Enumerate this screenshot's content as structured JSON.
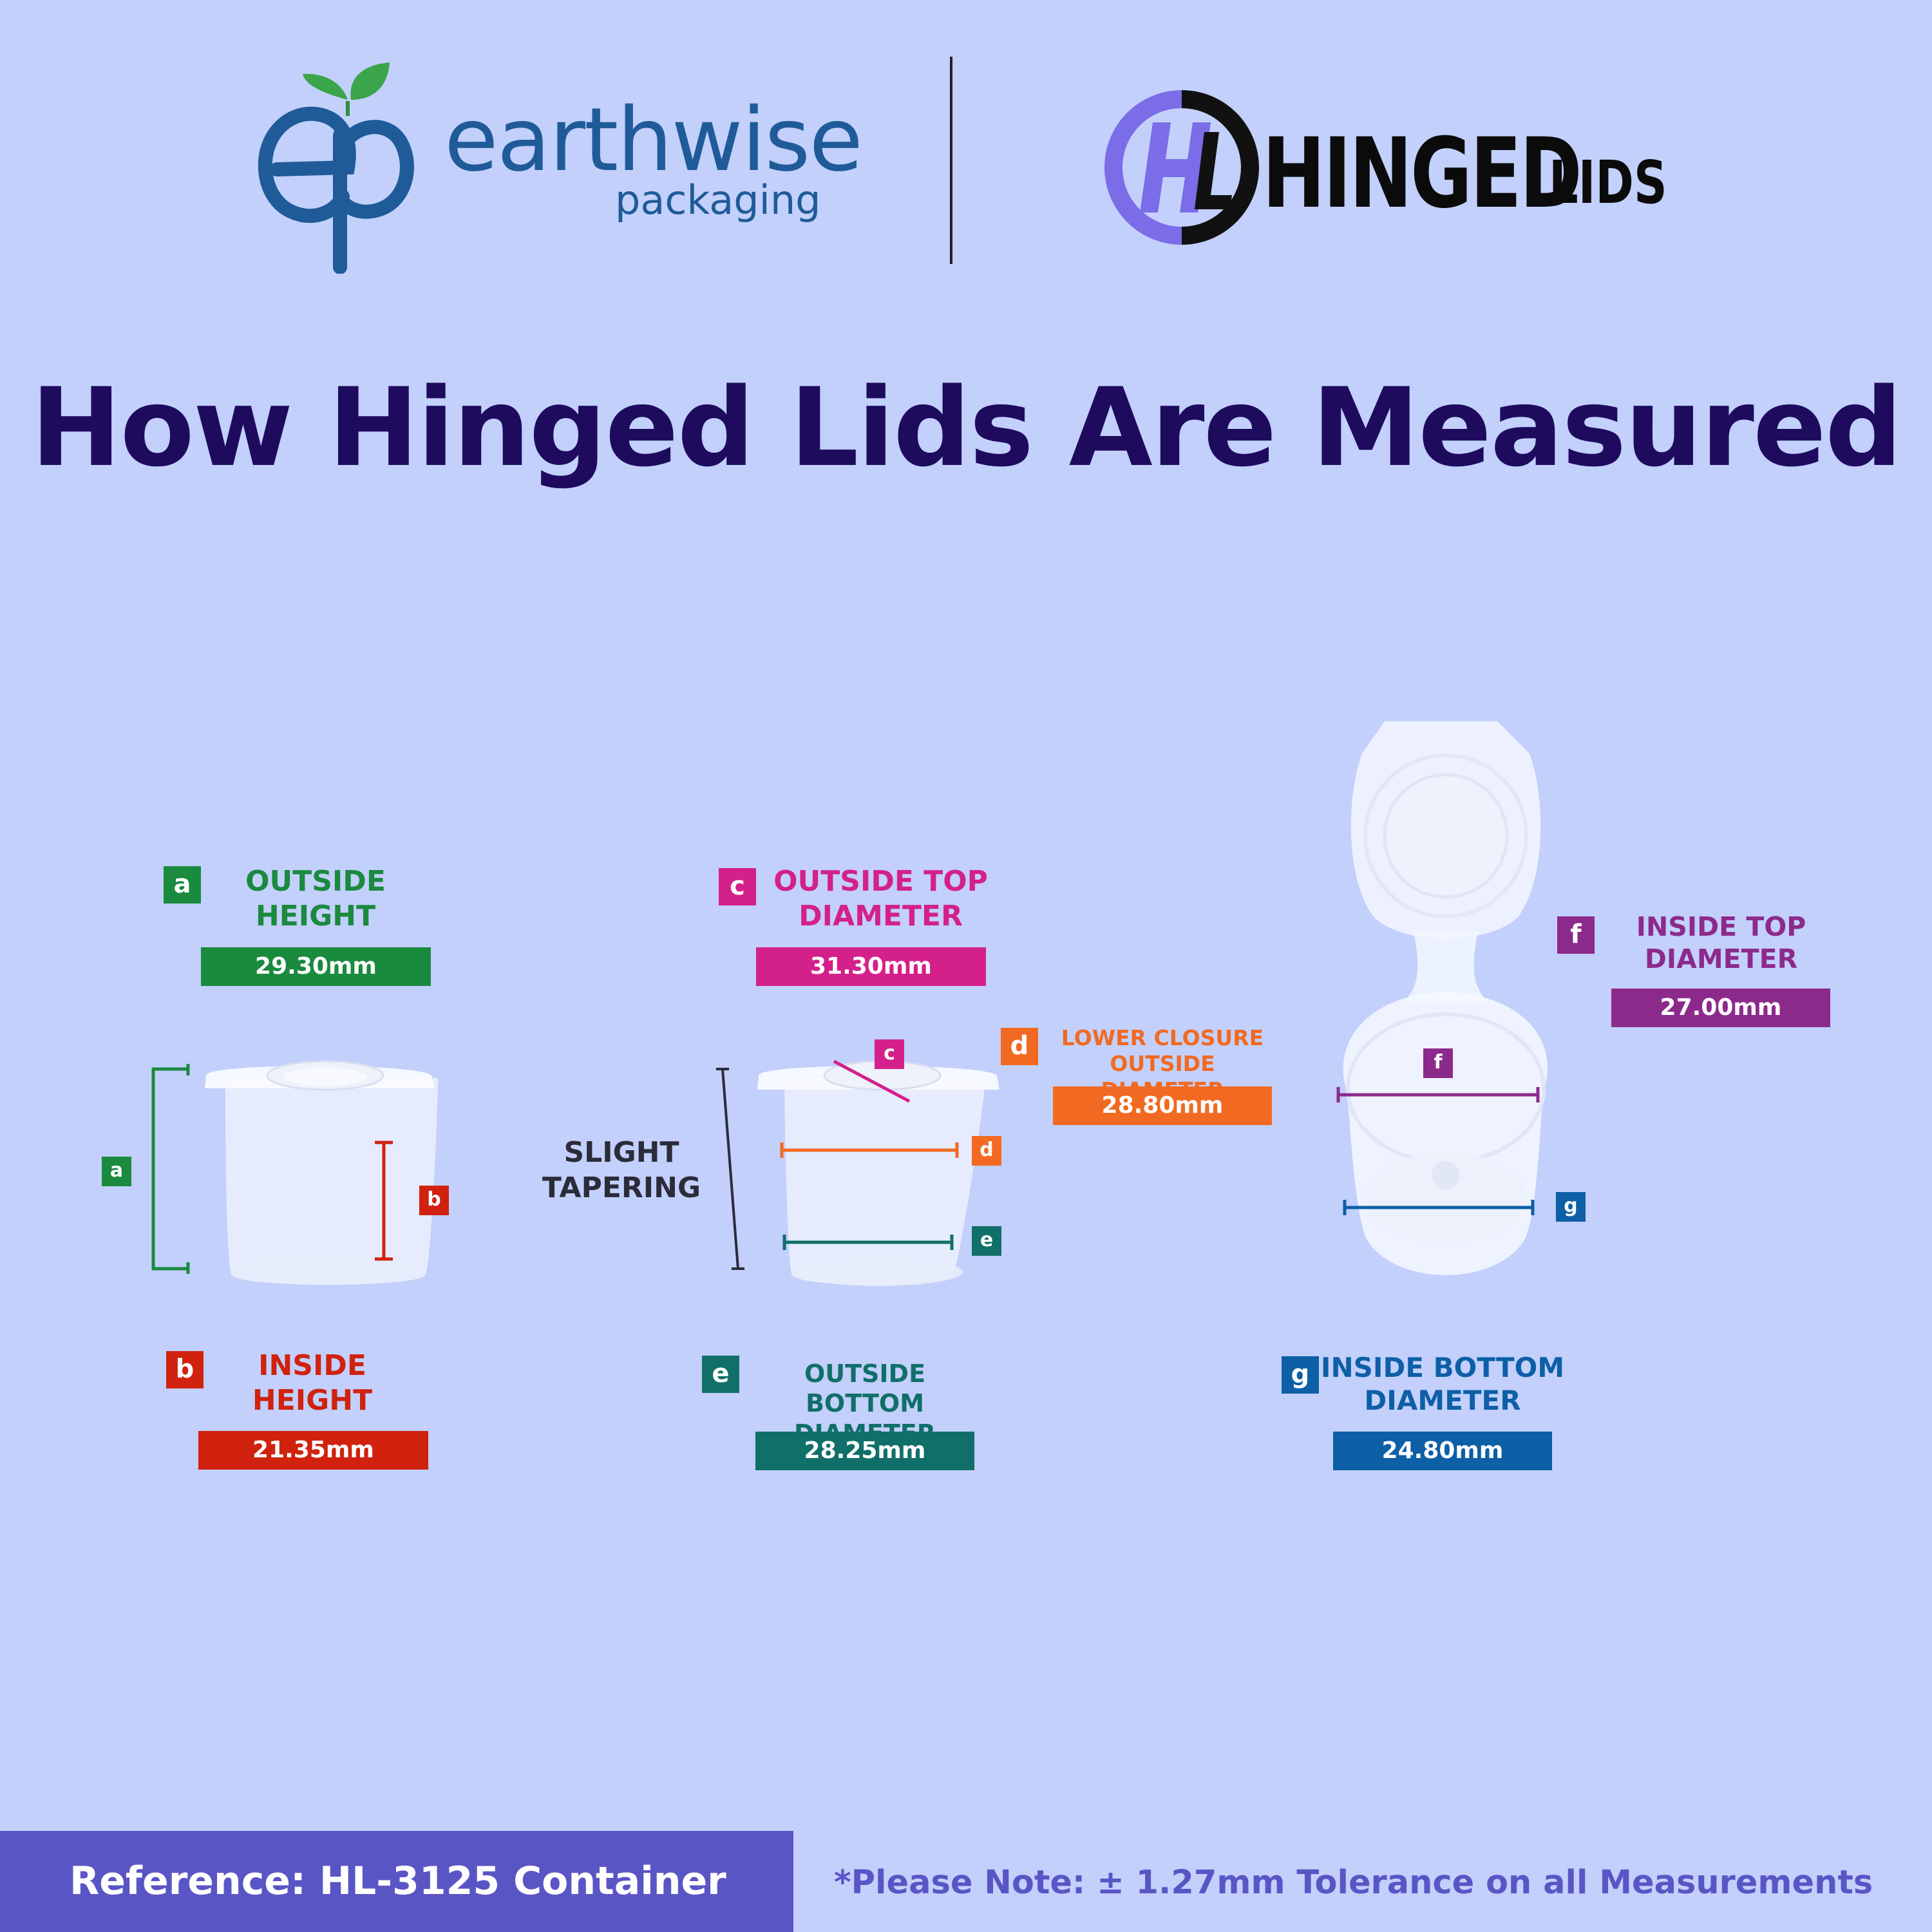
{
  "header": {
    "left_brand": {
      "logo": "ep-leaf-logo",
      "name": "earthwise",
      "sub": "packaging"
    },
    "right_brand": {
      "logo": "hl-circle-logo",
      "name_big": "HINGED",
      "name_small": "LIDS"
    }
  },
  "title": "How Hinged Lids Are Measured",
  "measurements": [
    {
      "key": "a",
      "label_line1": "OUTSIDE",
      "label_line2": "HEIGHT",
      "value": "29.30mm",
      "color": "#1a8a3e"
    },
    {
      "key": "b",
      "label_line1": "INSIDE",
      "label_line2": "HEIGHT",
      "value": "21.35mm",
      "color": "#d0220f"
    },
    {
      "key": "c",
      "label_line1": "OUTSIDE TOP",
      "label_line2": "DIAMETER",
      "value": "31.30mm",
      "color": "#d4208a"
    },
    {
      "key": "d",
      "label_line1": "LOWER CLOSURE",
      "label_line2": "OUTSIDE DIAMETER",
      "value": "28.80mm",
      "color": "#f26a22"
    },
    {
      "key": "e",
      "label_line1": "OUTSIDE BOTTOM",
      "label_line2": "DIAMETER",
      "value": "28.25mm",
      "color": "#116f69"
    },
    {
      "key": "f",
      "label_line1": "INSIDE TOP",
      "label_line2": "DIAMETER",
      "value": "27.00mm",
      "color": "#8c2a8c"
    },
    {
      "key": "g",
      "label_line1": "INSIDE BOTTOM",
      "label_line2": "DIAMETER",
      "value": "24.80mm",
      "color": "#0d5fa6"
    }
  ],
  "note_tapering": {
    "line1": "SLIGHT",
    "line2": "TAPERING"
  },
  "footer": {
    "reference": "Reference: HL-3125 Container",
    "note": "*Please Note: ± 1.27mm Tolerance on all Measurements"
  }
}
